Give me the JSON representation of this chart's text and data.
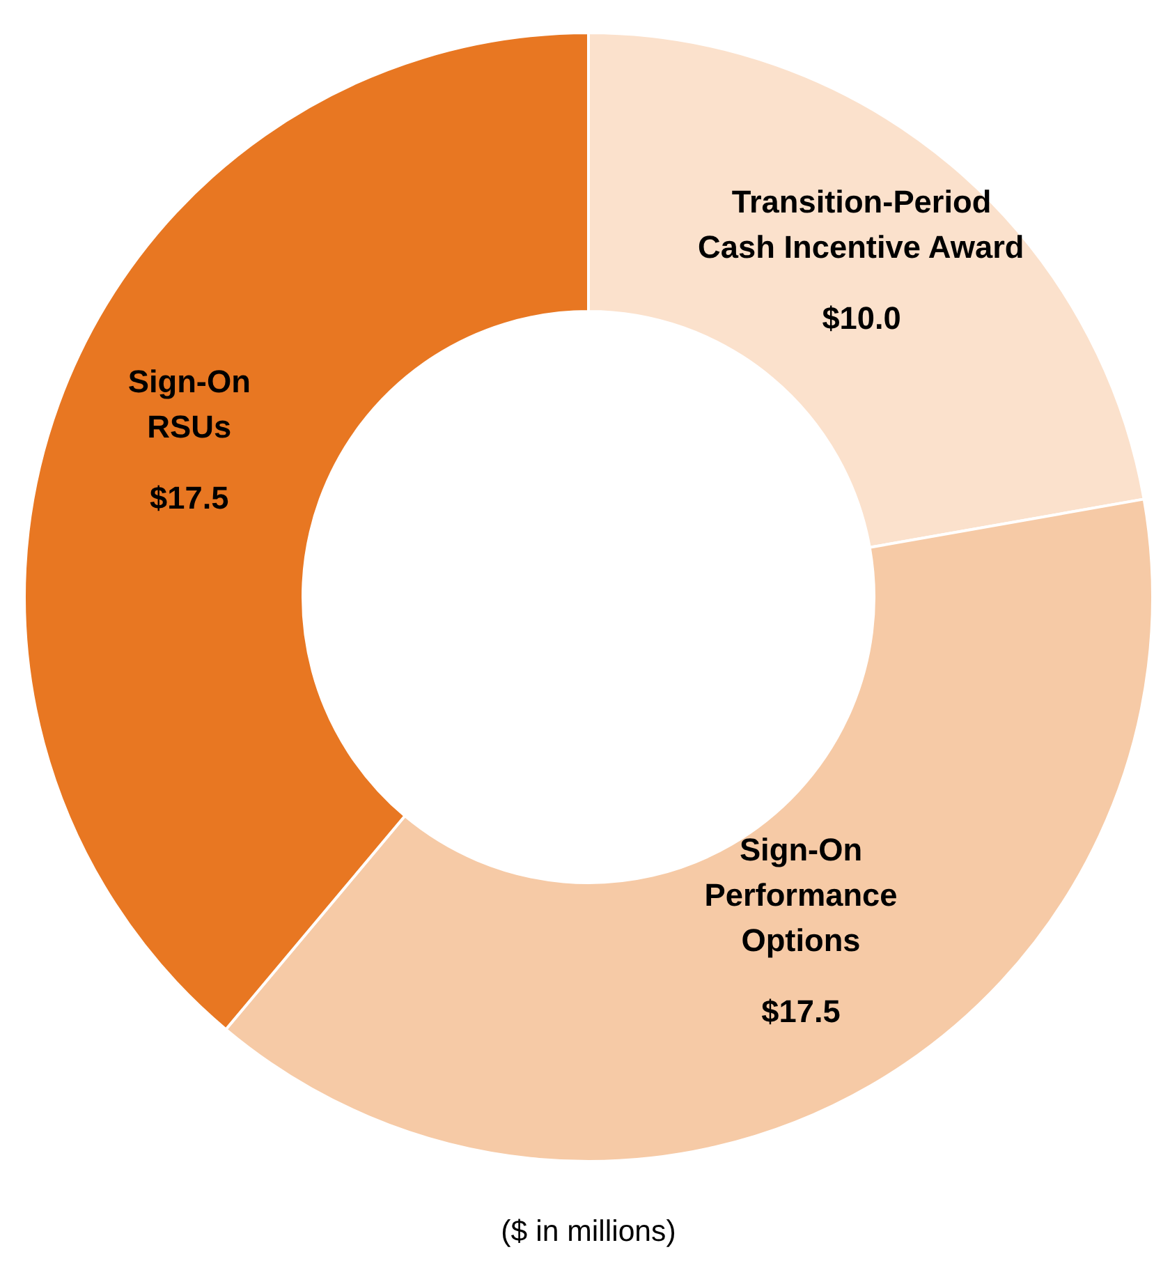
{
  "chart_data": {
    "type": "donut",
    "categories": [
      "Transition-Period\nCash Incentive Award",
      "Sign-On\nPerformance\nOptions",
      "Sign-On\nRSUs"
    ],
    "values": [
      10.0,
      17.5,
      17.5
    ],
    "value_labels": [
      "$10.0",
      "$17.5",
      "$17.5"
    ],
    "colors": [
      "#fbe1cc",
      "#f6caa6",
      "#e87722"
    ],
    "annotations": [
      "($ in millions)"
    ]
  }
}
